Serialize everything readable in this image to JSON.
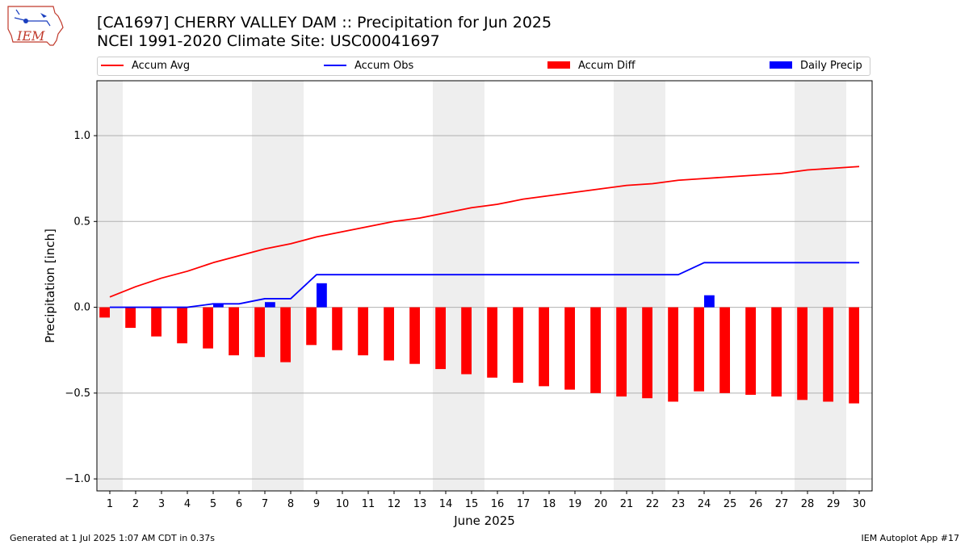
{
  "header": {
    "title_line1": "[CA1697] CHERRY VALLEY DAM :: Precipitation for Jun 2025",
    "title_line2": "NCEI 1991-2020 Climate Site: USC00041697"
  },
  "logo": {
    "text": "IEM"
  },
  "footer": {
    "left": "Generated at 1 Jul 2025 1:07 AM CDT in 0.37s",
    "right": "IEM Autoplot App #17"
  },
  "colors": {
    "accum_avg": "#ff0000",
    "accum_obs": "#0000ff",
    "accum_diff": "#ff0000",
    "daily_precip": "#0000ff",
    "weekend_shade": "#eeeeee",
    "grid": "#b0b0b0"
  },
  "chart_data": {
    "type": "bar",
    "xlabel": "June 2025",
    "ylabel": "Precipitation [inch]",
    "ylim": [
      -1.07,
      1.32
    ],
    "yticks": [
      -1.0,
      -0.5,
      0.0,
      0.5,
      1.0
    ],
    "ytick_labels": [
      "−1.0",
      "−0.5",
      "0.0",
      "0.5",
      "1.0"
    ],
    "grid": "horizontal",
    "legend_position": "top",
    "categories": [
      "1",
      "2",
      "3",
      "4",
      "5",
      "6",
      "7",
      "8",
      "9",
      "10",
      "11",
      "12",
      "13",
      "14",
      "15",
      "16",
      "17",
      "18",
      "19",
      "20",
      "21",
      "22",
      "23",
      "24",
      "25",
      "26",
      "27",
      "28",
      "29",
      "30"
    ],
    "weekend_days": [
      1,
      7,
      8,
      14,
      15,
      21,
      22,
      28,
      29
    ],
    "series": [
      {
        "name": "Accum Avg",
        "kind": "line",
        "values": [
          0.06,
          0.12,
          0.17,
          0.21,
          0.26,
          0.3,
          0.34,
          0.37,
          0.41,
          0.44,
          0.47,
          0.5,
          0.52,
          0.55,
          0.58,
          0.6,
          0.63,
          0.65,
          0.67,
          0.69,
          0.71,
          0.72,
          0.74,
          0.75,
          0.76,
          0.77,
          0.78,
          0.8,
          0.81,
          0.82
        ]
      },
      {
        "name": "Accum Obs",
        "kind": "line",
        "values": [
          0.0,
          0.0,
          0.0,
          0.0,
          0.02,
          0.02,
          0.05,
          0.05,
          0.19,
          0.19,
          0.19,
          0.19,
          0.19,
          0.19,
          0.19,
          0.19,
          0.19,
          0.19,
          0.19,
          0.19,
          0.19,
          0.19,
          0.19,
          0.26,
          0.26,
          0.26,
          0.26,
          0.26,
          0.26,
          0.26
        ]
      },
      {
        "name": "Accum Diff",
        "kind": "bar",
        "values": [
          -0.06,
          -0.12,
          -0.17,
          -0.21,
          -0.24,
          -0.28,
          -0.29,
          -0.32,
          -0.22,
          -0.25,
          -0.28,
          -0.31,
          -0.33,
          -0.36,
          -0.39,
          -0.41,
          -0.44,
          -0.46,
          -0.48,
          -0.5,
          -0.52,
          -0.53,
          -0.55,
          -0.49,
          -0.5,
          -0.51,
          -0.52,
          -0.54,
          -0.55,
          -0.56
        ]
      },
      {
        "name": "Daily Precip",
        "kind": "bar",
        "values": [
          0,
          0,
          0,
          0,
          0.02,
          0,
          0.03,
          0,
          0.14,
          0,
          0,
          0,
          0,
          0,
          0,
          0,
          0,
          0,
          0,
          0,
          0,
          0,
          0,
          0.07,
          0,
          0,
          0,
          0,
          0,
          0
        ]
      }
    ]
  }
}
